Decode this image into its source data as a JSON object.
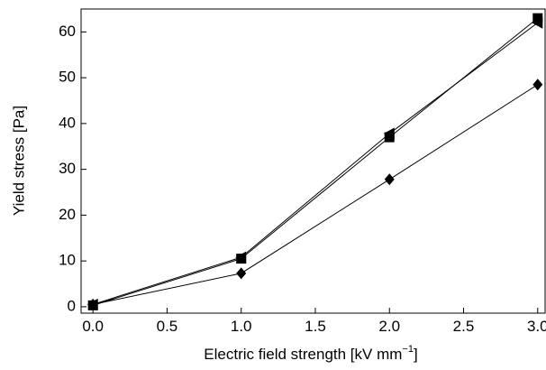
{
  "chart_data": {
    "type": "line",
    "xlabel": [
      "Electric field strength [kV mm",
      "−1",
      "]"
    ],
    "ylabel": "Yield stress [Pa]",
    "x": [
      0,
      1,
      2,
      3
    ],
    "series": [
      {
        "color": "#000000",
        "marker": "square",
        "values": [
          0.3,
          10.5,
          37,
          63
        ]
      },
      {
        "color": "#000000",
        "marker": "triangle-left",
        "values": [
          0.5,
          10.8,
          37.8,
          62
        ]
      },
      {
        "color": "#000000",
        "marker": "diamond",
        "values": [
          0.5,
          7.3,
          27.8,
          48.5
        ]
      }
    ],
    "xlim": [
      -0.08,
      3.05
    ],
    "ylim": [
      -1.4,
      65
    ],
    "xticks": [
      {
        "value": 0,
        "label": "0.0"
      },
      {
        "value": 0.5,
        "label": "0.5"
      },
      {
        "value": 1,
        "label": "1.0"
      },
      {
        "value": 1.5,
        "label": "1.5"
      },
      {
        "value": 2,
        "label": "2.0"
      },
      {
        "value": 2.5,
        "label": "2.5"
      },
      {
        "value": 3,
        "label": "3.0"
      }
    ],
    "yticks": [
      0,
      10,
      20,
      30,
      40,
      50,
      60
    ],
    "grid": false
  }
}
